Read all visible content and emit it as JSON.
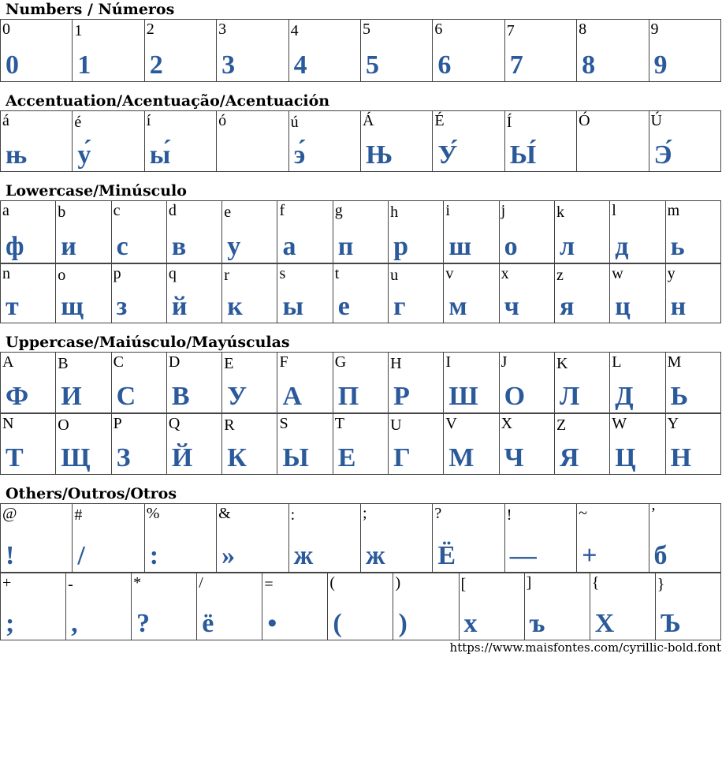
{
  "glyph_color": "#2b5a9b",
  "sections": [
    {
      "title": "Numbers / Números",
      "rows": [
        [
          [
            "0",
            "0"
          ],
          [
            "1",
            "1"
          ],
          [
            "2",
            "2"
          ],
          [
            "3",
            "3"
          ],
          [
            "4",
            "4"
          ],
          [
            "5",
            "5"
          ],
          [
            "6",
            "6"
          ],
          [
            "7",
            "7"
          ],
          [
            "8",
            "8"
          ],
          [
            "9",
            "9"
          ]
        ]
      ]
    },
    {
      "title": "Accentuation/Acentuação/Acentuación",
      "rows": [
        [
          [
            "á",
            "њ"
          ],
          [
            "é",
            "у́"
          ],
          [
            "í",
            "ы́"
          ],
          [
            "ó",
            ""
          ],
          [
            "ú",
            "э́"
          ],
          [
            "Á",
            "Њ"
          ],
          [
            "É",
            "У́"
          ],
          [
            "Í",
            "Ы́"
          ],
          [
            "Ó",
            ""
          ],
          [
            "Ú",
            "Э́"
          ]
        ]
      ]
    },
    {
      "title": "Lowercase/Minúsculo",
      "rows": [
        [
          [
            "a",
            "ф"
          ],
          [
            "b",
            "и"
          ],
          [
            "c",
            "с"
          ],
          [
            "d",
            "в"
          ],
          [
            "e",
            "у"
          ],
          [
            "f",
            "а"
          ],
          [
            "g",
            "п"
          ],
          [
            "h",
            "р"
          ],
          [
            "i",
            "ш"
          ],
          [
            "j",
            "о"
          ],
          [
            "k",
            "л"
          ],
          [
            "l",
            "д"
          ],
          [
            "m",
            "ь"
          ]
        ],
        [
          [
            "n",
            "т"
          ],
          [
            "o",
            "щ"
          ],
          [
            "p",
            "з"
          ],
          [
            "q",
            "й"
          ],
          [
            "r",
            "к"
          ],
          [
            "s",
            "ы"
          ],
          [
            "t",
            "е"
          ],
          [
            "u",
            "г"
          ],
          [
            "v",
            "м"
          ],
          [
            "x",
            "ч"
          ],
          [
            "z",
            "я"
          ],
          [
            "w",
            "ц"
          ],
          [
            "y",
            "н"
          ]
        ]
      ]
    },
    {
      "title": "Uppercase/Maiúsculo/Mayúsculas",
      "rows": [
        [
          [
            "A",
            "Ф"
          ],
          [
            "B",
            "И"
          ],
          [
            "C",
            "С"
          ],
          [
            "D",
            "В"
          ],
          [
            "E",
            "У"
          ],
          [
            "F",
            "А"
          ],
          [
            "G",
            "П"
          ],
          [
            "H",
            "Р"
          ],
          [
            "I",
            "Ш"
          ],
          [
            "J",
            "О"
          ],
          [
            "K",
            "Л"
          ],
          [
            "L",
            "Д"
          ],
          [
            "M",
            "Ь"
          ]
        ],
        [
          [
            "N",
            "Т"
          ],
          [
            "O",
            "Щ"
          ],
          [
            "P",
            "З"
          ],
          [
            "Q",
            "Й"
          ],
          [
            "R",
            "К"
          ],
          [
            "S",
            "Ы"
          ],
          [
            "T",
            "Е"
          ],
          [
            "U",
            "Г"
          ],
          [
            "V",
            "М"
          ],
          [
            "X",
            "Ч"
          ],
          [
            "Z",
            "Я"
          ],
          [
            "W",
            "Ц"
          ],
          [
            "Y",
            "Н"
          ]
        ]
      ]
    },
    {
      "title": "Others/Outros/Otros",
      "rows": [
        [
          [
            "@",
            "!"
          ],
          [
            "#",
            "/"
          ],
          [
            "%",
            ":"
          ],
          [
            "&",
            "»"
          ],
          [
            ":",
            "ж"
          ],
          [
            ";",
            "ж"
          ],
          [
            "?",
            "Ё"
          ],
          [
            "!",
            "—"
          ],
          [
            "~",
            "+"
          ],
          [
            "’",
            "б"
          ]
        ],
        [
          [
            "+",
            ";"
          ],
          [
            "-",
            ","
          ],
          [
            "*",
            "?"
          ],
          [
            "/",
            "ё"
          ],
          [
            "=",
            "•"
          ],
          [
            "(",
            "("
          ],
          [
            ")",
            ")"
          ],
          [
            "[",
            "х"
          ],
          [
            "]",
            "ъ"
          ],
          [
            "{",
            "Х"
          ],
          [
            "}",
            "Ъ"
          ]
        ]
      ]
    }
  ],
  "footer": "https://www.maisfontes.com/cyrillic-bold.font"
}
